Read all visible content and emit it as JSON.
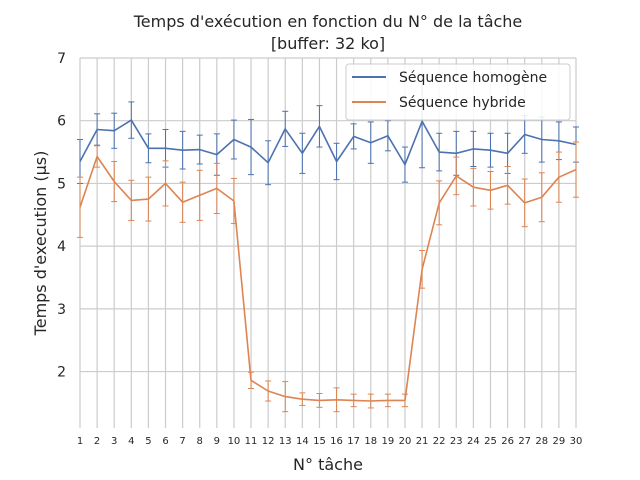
{
  "chart_data": {
    "type": "line",
    "title": "Temps d'exécution en fonction du N° de la tâche",
    "subtitle": "[buffer: 32 ko]",
    "xlabel": "N° tâche",
    "ylabel": "Temps d'execution (µs)",
    "x": [
      1,
      2,
      3,
      4,
      5,
      6,
      7,
      8,
      9,
      10,
      11,
      12,
      13,
      14,
      15,
      16,
      17,
      18,
      19,
      20,
      21,
      22,
      23,
      24,
      25,
      26,
      27,
      28,
      29,
      30
    ],
    "xlim": [
      1,
      30
    ],
    "ylim": [
      1.1,
      7
    ],
    "yticks": [
      2,
      3,
      4,
      5,
      6,
      7
    ],
    "grid": true,
    "legend_position": "top-right",
    "series": [
      {
        "name": "Séquence homogène",
        "color": "#4c72b0",
        "values": [
          5.35,
          5.86,
          5.84,
          6.01,
          5.56,
          5.56,
          5.53,
          5.54,
          5.46,
          5.7,
          5.58,
          5.33,
          5.87,
          5.48,
          5.91,
          5.35,
          5.75,
          5.65,
          5.76,
          5.3,
          5.99,
          5.5,
          5.48,
          5.55,
          5.53,
          5.48,
          5.78,
          5.7,
          5.68,
          5.62
        ],
        "errors": [
          0.35,
          0.25,
          0.28,
          0.29,
          0.23,
          0.3,
          0.3,
          0.23,
          0.33,
          0.31,
          0.44,
          0.35,
          0.28,
          0.32,
          0.33,
          0.29,
          0.2,
          0.33,
          0.24,
          0.28,
          0.74,
          0.3,
          0.35,
          0.28,
          0.27,
          0.32,
          0.3,
          0.36,
          0.3,
          0.28
        ]
      },
      {
        "name": "Séquence hybride",
        "color": "#dd8452",
        "values": [
          4.62,
          5.43,
          5.03,
          4.73,
          4.75,
          5.0,
          4.7,
          4.81,
          4.92,
          4.72,
          1.86,
          1.69,
          1.6,
          1.56,
          1.54,
          1.55,
          1.54,
          1.53,
          1.54,
          1.54,
          3.63,
          4.69,
          5.12,
          4.94,
          4.89,
          4.97,
          4.69,
          4.78,
          5.1,
          5.22
        ],
        "errors": [
          0.48,
          0.17,
          0.32,
          0.32,
          0.35,
          0.36,
          0.32,
          0.4,
          0.4,
          0.36,
          0.13,
          0.16,
          0.24,
          0.1,
          0.11,
          0.19,
          0.1,
          0.11,
          0.1,
          0.1,
          0.3,
          0.35,
          0.3,
          0.3,
          0.3,
          0.3,
          0.38,
          0.39,
          0.4,
          0.44
        ]
      }
    ]
  }
}
